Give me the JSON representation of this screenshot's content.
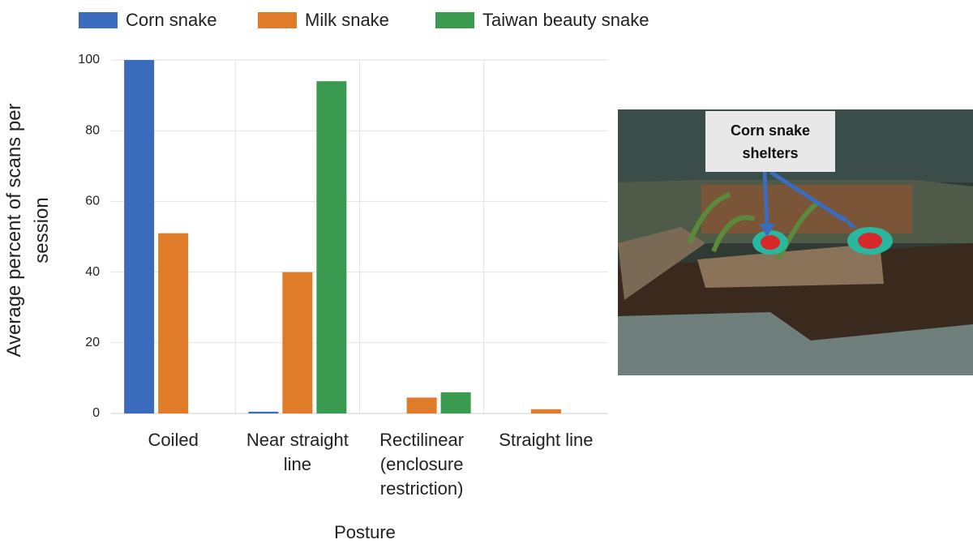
{
  "chart_data": {
    "type": "bar",
    "x_label": "Posture",
    "y_label": "Average percent of scans per session",
    "categories": [
      "Coiled",
      "Near straight line",
      "Rectilinear (enclosure restriction)",
      "Straight line"
    ],
    "series": [
      {
        "name": "Corn snake",
        "color": "#3a6bbd",
        "values": [
          100,
          0.5,
          0,
          0
        ]
      },
      {
        "name": "Milk snake",
        "color": "#e07b2a",
        "values": [
          51,
          40,
          4.5,
          1.2
        ]
      },
      {
        "name": "Taiwan beauty snake",
        "color": "#3a9a4f",
        "values": [
          0,
          94,
          6,
          0
        ]
      }
    ],
    "ylim": [
      0,
      100
    ],
    "yticks": [
      0,
      20,
      40,
      60,
      80,
      100
    ],
    "grid": true,
    "legend": "top"
  },
  "annotation": "Corn snake shelters"
}
